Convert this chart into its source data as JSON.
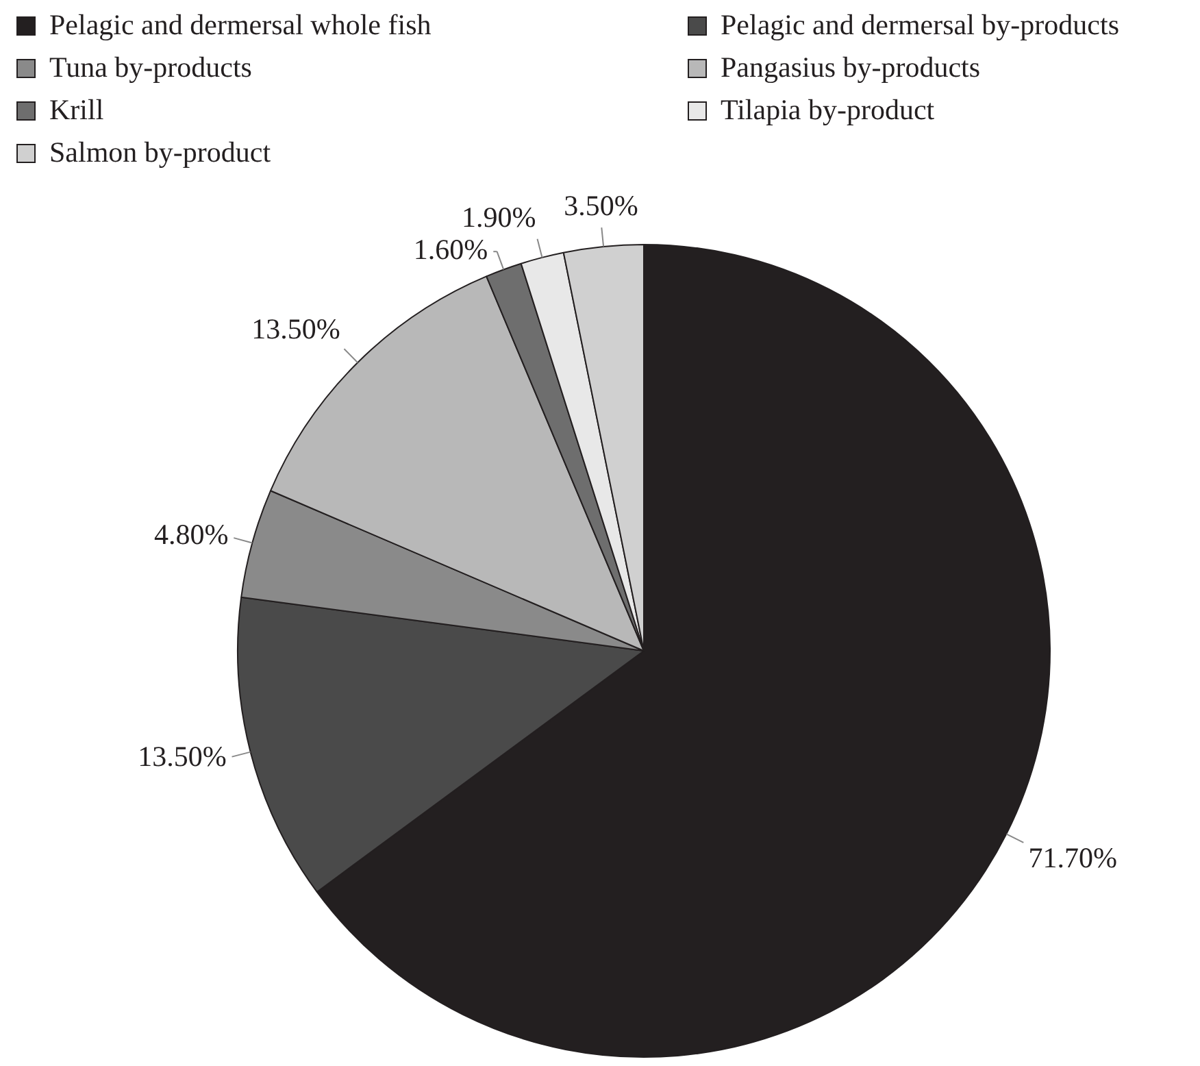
{
  "chart_data": {
    "type": "pie",
    "categories": [
      "Pelagic and dermersal whole fish",
      "Pelagic and dermersal by-products",
      "Tuna by-products",
      "Pangasius by-products",
      "Krill",
      "Tilapia by-product",
      "Salmon by-product"
    ],
    "values": [
      71.7,
      13.5,
      4.8,
      13.5,
      1.6,
      1.9,
      3.5
    ],
    "value_labels": [
      "71.70%",
      "13.50%",
      "4.80%",
      "13.50%",
      "1.60%",
      "1.90%",
      "3.50%"
    ],
    "colors": [
      "#231f20",
      "#4a4a4a",
      "#8a8a8a",
      "#b8b8b8",
      "#6e6e6e",
      "#e8e8e8",
      "#d0d0d0"
    ],
    "legend": "top"
  }
}
